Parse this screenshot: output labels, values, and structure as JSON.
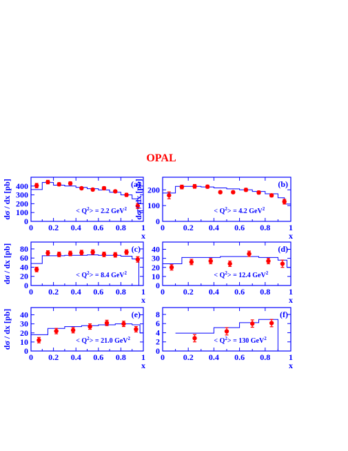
{
  "title": "OPAL",
  "colors": {
    "axis": "#0000ff",
    "model": "#0000ff",
    "data": "#ff0000",
    "title": "#ff0000"
  },
  "chart_data": [
    {
      "type": "scatter",
      "panel_label": "(a)",
      "annotation": "< Q",
      "annotation_unit": "> = 2.2 GeV",
      "xlabel": "x",
      "ylabel": "dσ / dx [pb]",
      "xlim": [
        0,
        1
      ],
      "ylim": [
        0,
        500
      ],
      "xticks": [
        0,
        0.2,
        0.4,
        0.6,
        0.8,
        1
      ],
      "xtick_labels": [
        "0",
        "0.2",
        "0.4",
        "0.6",
        "0.8",
        "1"
      ],
      "yticks": [
        0,
        100,
        200,
        300,
        400
      ],
      "ytick_labels": [
        "0",
        "100",
        "200",
        "300",
        "400"
      ],
      "points": [
        {
          "x": 0.05,
          "y": 405,
          "err": 25
        },
        {
          "x": 0.15,
          "y": 445,
          "err": 20
        },
        {
          "x": 0.25,
          "y": 420,
          "err": 18
        },
        {
          "x": 0.35,
          "y": 430,
          "err": 18
        },
        {
          "x": 0.45,
          "y": 375,
          "err": 15
        },
        {
          "x": 0.55,
          "y": 360,
          "err": 15
        },
        {
          "x": 0.65,
          "y": 375,
          "err": 18
        },
        {
          "x": 0.75,
          "y": 340,
          "err": 15
        },
        {
          "x": 0.85,
          "y": 300,
          "err": 18
        },
        {
          "x": 0.95,
          "y": 175,
          "err": 30
        }
      ],
      "model": [
        {
          "x0": 0.0,
          "x1": 0.1,
          "y": 360
        },
        {
          "x0": 0.1,
          "x1": 0.2,
          "y": 440
        },
        {
          "x0": 0.2,
          "x1": 0.3,
          "y": 410
        },
        {
          "x0": 0.3,
          "x1": 0.4,
          "y": 400
        },
        {
          "x0": 0.4,
          "x1": 0.5,
          "y": 385
        },
        {
          "x0": 0.5,
          "x1": 0.6,
          "y": 370
        },
        {
          "x0": 0.6,
          "x1": 0.7,
          "y": 355
        },
        {
          "x0": 0.7,
          "x1": 0.8,
          "y": 330
        },
        {
          "x0": 0.8,
          "x1": 0.9,
          "y": 300
        },
        {
          "x0": 0.9,
          "x1": 0.95,
          "y": 255
        },
        {
          "x0": 0.95,
          "x1": 1.0,
          "y": 120
        }
      ]
    },
    {
      "type": "scatter",
      "panel_label": "(b)",
      "annotation": "< Q",
      "annotation_unit": "> = 4.2 GeV",
      "xlabel": "x",
      "ylabel": "dσ / dx [pb]",
      "xlim": [
        0,
        1
      ],
      "ylim": [
        0,
        280
      ],
      "xticks": [
        0,
        0.2,
        0.4,
        0.6,
        0.8,
        1
      ],
      "xtick_labels": [
        "0",
        "0.2",
        "0.4",
        "0.6",
        "0.8",
        "1"
      ],
      "yticks": [
        0,
        100,
        200
      ],
      "ytick_labels": [
        "0",
        "100",
        "200"
      ],
      "points": [
        {
          "x": 0.05,
          "y": 165,
          "err": 22
        },
        {
          "x": 0.15,
          "y": 218,
          "err": 12
        },
        {
          "x": 0.25,
          "y": 222,
          "err": 12
        },
        {
          "x": 0.35,
          "y": 220,
          "err": 10
        },
        {
          "x": 0.45,
          "y": 185,
          "err": 8
        },
        {
          "x": 0.55,
          "y": 185,
          "err": 8
        },
        {
          "x": 0.65,
          "y": 200,
          "err": 10
        },
        {
          "x": 0.75,
          "y": 183,
          "err": 10
        },
        {
          "x": 0.85,
          "y": 165,
          "err": 10
        },
        {
          "x": 0.95,
          "y": 125,
          "err": 15
        }
      ],
      "model": [
        {
          "x0": 0.0,
          "x1": 0.1,
          "y": 180
        },
        {
          "x0": 0.1,
          "x1": 0.2,
          "y": 222
        },
        {
          "x0": 0.2,
          "x1": 0.3,
          "y": 222
        },
        {
          "x0": 0.3,
          "x1": 0.4,
          "y": 218
        },
        {
          "x0": 0.4,
          "x1": 0.5,
          "y": 212
        },
        {
          "x0": 0.5,
          "x1": 0.6,
          "y": 206
        },
        {
          "x0": 0.6,
          "x1": 0.7,
          "y": 200
        },
        {
          "x0": 0.7,
          "x1": 0.8,
          "y": 190
        },
        {
          "x0": 0.8,
          "x1": 0.9,
          "y": 175
        },
        {
          "x0": 0.9,
          "x1": 0.95,
          "y": 150
        },
        {
          "x0": 0.95,
          "x1": 1.0,
          "y": 110
        }
      ]
    },
    {
      "type": "scatter",
      "panel_label": "(c)",
      "annotation": "< Q",
      "annotation_unit": "> = 8.4 GeV",
      "xlabel": "x",
      "ylabel": "dσ / dx [pb]",
      "xlim": [
        0,
        1
      ],
      "ylim": [
        0,
        95
      ],
      "xticks": [
        0,
        0.2,
        0.4,
        0.6,
        0.8,
        1
      ],
      "xtick_labels": [
        "0",
        "0.2",
        "0.4",
        "0.6",
        "0.8",
        "1"
      ],
      "yticks": [
        0,
        20,
        40,
        60,
        80
      ],
      "ytick_labels": [
        "0",
        "20",
        "40",
        "60",
        "80"
      ],
      "points": [
        {
          "x": 0.05,
          "y": 35,
          "err": 5
        },
        {
          "x": 0.15,
          "y": 71,
          "err": 5
        },
        {
          "x": 0.25,
          "y": 68,
          "err": 5
        },
        {
          "x": 0.35,
          "y": 70,
          "err": 5
        },
        {
          "x": 0.45,
          "y": 72,
          "err": 5
        },
        {
          "x": 0.55,
          "y": 73,
          "err": 5
        },
        {
          "x": 0.65,
          "y": 68,
          "err": 5
        },
        {
          "x": 0.75,
          "y": 67,
          "err": 5
        },
        {
          "x": 0.85,
          "y": 73,
          "err": 5
        },
        {
          "x": 0.95,
          "y": 57,
          "err": 6
        }
      ],
      "model": [
        {
          "x0": 0.0,
          "x1": 0.1,
          "y": 48
        },
        {
          "x0": 0.1,
          "x1": 0.2,
          "y": 65
        },
        {
          "x0": 0.2,
          "x1": 0.3,
          "y": 65
        },
        {
          "x0": 0.3,
          "x1": 0.4,
          "y": 66
        },
        {
          "x0": 0.4,
          "x1": 0.5,
          "y": 66
        },
        {
          "x0": 0.5,
          "x1": 0.6,
          "y": 67
        },
        {
          "x0": 0.6,
          "x1": 0.7,
          "y": 66
        },
        {
          "x0": 0.7,
          "x1": 0.8,
          "y": 66
        },
        {
          "x0": 0.8,
          "x1": 0.9,
          "y": 64
        },
        {
          "x0": 0.9,
          "x1": 0.96,
          "y": 58
        },
        {
          "x0": 0.96,
          "x1": 1.0,
          "y": 0
        }
      ]
    },
    {
      "type": "scatter",
      "panel_label": "(d)",
      "annotation": "< Q",
      "annotation_unit": "> = 12.4 GeV",
      "xlabel": "x",
      "ylabel": "",
      "xlim": [
        0,
        1
      ],
      "ylim": [
        0,
        48
      ],
      "xticks": [
        0,
        0.2,
        0.4,
        0.6,
        0.8,
        1
      ],
      "xtick_labels": [
        "0",
        "0.2",
        "0.4",
        "0.6",
        "0.8",
        "1"
      ],
      "yticks": [
        0,
        10,
        20,
        30,
        40
      ],
      "ytick_labels": [
        "0",
        "10",
        "20",
        "30",
        "40"
      ],
      "points": [
        {
          "x": 0.07,
          "y": 20,
          "err": 3
        },
        {
          "x": 0.225,
          "y": 26,
          "err": 3
        },
        {
          "x": 0.375,
          "y": 27,
          "err": 3
        },
        {
          "x": 0.525,
          "y": 24,
          "err": 3
        },
        {
          "x": 0.675,
          "y": 35,
          "err": 3
        },
        {
          "x": 0.825,
          "y": 27,
          "err": 3
        },
        {
          "x": 0.935,
          "y": 24,
          "err": 4
        }
      ],
      "model": [
        {
          "x0": 0.0,
          "x1": 0.15,
          "y": 24
        },
        {
          "x0": 0.15,
          "x1": 0.3,
          "y": 31
        },
        {
          "x0": 0.3,
          "x1": 0.45,
          "y": 31
        },
        {
          "x0": 0.45,
          "x1": 0.6,
          "y": 32
        },
        {
          "x0": 0.6,
          "x1": 0.75,
          "y": 32
        },
        {
          "x0": 0.75,
          "x1": 0.9,
          "y": 31
        },
        {
          "x0": 0.9,
          "x1": 0.97,
          "y": 28
        },
        {
          "x0": 0.97,
          "x1": 1.0,
          "y": 20
        }
      ]
    },
    {
      "type": "scatter",
      "panel_label": "(e)",
      "annotation": "< Q",
      "annotation_unit": "> = 21.0 GeV",
      "xlabel": "x",
      "ylabel": "dσ / dx [pb]",
      "xlim": [
        0,
        1
      ],
      "ylim": [
        0,
        48
      ],
      "xticks": [
        0,
        0.2,
        0.4,
        0.6,
        0.8,
        1
      ],
      "xtick_labels": [
        "0",
        "0.2",
        "0.4",
        "0.6",
        "0.8",
        "1"
      ],
      "yticks": [
        0,
        10,
        20,
        30,
        40
      ],
      "ytick_labels": [
        "0",
        "10",
        "20",
        "30",
        "40"
      ],
      "points": [
        {
          "x": 0.07,
          "y": 12,
          "err": 3
        },
        {
          "x": 0.225,
          "y": 22,
          "err": 3
        },
        {
          "x": 0.375,
          "y": 23,
          "err": 3
        },
        {
          "x": 0.525,
          "y": 27,
          "err": 3
        },
        {
          "x": 0.675,
          "y": 31,
          "err": 3
        },
        {
          "x": 0.825,
          "y": 30,
          "err": 3
        },
        {
          "x": 0.935,
          "y": 24,
          "err": 3
        }
      ],
      "model": [
        {
          "x0": 0.0,
          "x1": 0.15,
          "y": 18
        },
        {
          "x0": 0.15,
          "x1": 0.3,
          "y": 25
        },
        {
          "x0": 0.3,
          "x1": 0.45,
          "y": 27
        },
        {
          "x0": 0.45,
          "x1": 0.6,
          "y": 28
        },
        {
          "x0": 0.6,
          "x1": 0.75,
          "y": 29
        },
        {
          "x0": 0.75,
          "x1": 0.9,
          "y": 30
        },
        {
          "x0": 0.9,
          "x1": 0.97,
          "y": 29
        },
        {
          "x0": 0.97,
          "x1": 1.0,
          "y": 20
        }
      ]
    },
    {
      "type": "scatter",
      "panel_label": "(f)",
      "annotation": "< Q",
      "annotation_unit": "> = 130 GeV",
      "xlabel": "x",
      "ylabel": "",
      "xlim": [
        0,
        1
      ],
      "ylim": [
        0,
        9.5
      ],
      "xticks": [
        0,
        0.2,
        0.4,
        0.6,
        0.8,
        1
      ],
      "xtick_labels": [
        "0",
        "0.2",
        "0.4",
        "0.6",
        "0.8",
        "1"
      ],
      "yticks": [
        0,
        2,
        4,
        6,
        8
      ],
      "ytick_labels": [
        "0",
        "2",
        "4",
        "6",
        "8"
      ],
      "points": [
        {
          "x": 0.25,
          "y": 2.8,
          "err": 0.8
        },
        {
          "x": 0.5,
          "y": 4.3,
          "err": 0.8
        },
        {
          "x": 0.7,
          "y": 6.0,
          "err": 0.8
        },
        {
          "x": 0.85,
          "y": 6.1,
          "err": 0.8
        }
      ],
      "model": [
        {
          "x0": 0.1,
          "x1": 0.4,
          "y": 3.9
        },
        {
          "x0": 0.4,
          "x1": 0.6,
          "y": 5.1
        },
        {
          "x0": 0.6,
          "x1": 0.75,
          "y": 6.2
        },
        {
          "x0": 0.75,
          "x1": 0.9,
          "y": 6.9
        },
        {
          "x0": 0.9,
          "x1": 0.92,
          "y": 0
        }
      ]
    }
  ]
}
